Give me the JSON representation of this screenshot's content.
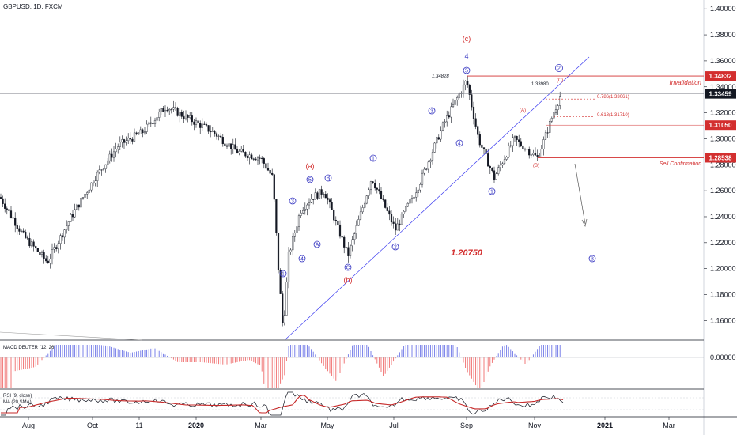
{
  "header": {
    "title": "GBPUSD, 1D, FXCM"
  },
  "chart_data": {
    "type": "candlestick",
    "symbol": "GBPUSD",
    "timeframe": "1D",
    "source": "FXCM",
    "y_axis": {
      "min": 1.145,
      "max": 1.405,
      "ticks": [
        "1.40000",
        "1.38000",
        "1.36000",
        "1.34000",
        "1.32000",
        "1.30000",
        "1.28000",
        "1.26000",
        "1.24000",
        "1.22000",
        "1.20000",
        "1.18000",
        "1.16000"
      ]
    },
    "x_axis": {
      "labels": [
        "Aug",
        "Oct",
        "11",
        "2020",
        "Mar",
        "May",
        "Jul",
        "Sep",
        "Nov",
        "2021",
        "Mar"
      ]
    },
    "price_tags": [
      {
        "value": 1.34832,
        "label": "1.34832",
        "color": "#d32f2f"
      },
      {
        "value": 1.33459,
        "label": "1.33459",
        "color": "#131722"
      },
      {
        "value": 1.3105,
        "label": "1.31050",
        "color": "#d32f2f"
      },
      {
        "value": 1.28538,
        "label": "1.28538",
        "color": "#d32f2f"
      }
    ],
    "levels": [
      {
        "name": "Invalidation",
        "value": 1.34832
      },
      {
        "name": "Sell Confirmation",
        "value": 1.28538
      },
      {
        "name": "support",
        "value": 1.2075,
        "label": "1.20750"
      }
    ],
    "annotations": {
      "high_label": "1.34828",
      "recent_high": "1.33980",
      "fib_786": "0.786(1.33061)",
      "fib_618": "0.618(1.31710)",
      "wave_c": "(c)",
      "wave_4": "4",
      "wave_a": "(a)",
      "wave_b": "(b)",
      "wave_A": "(A)",
      "wave_B": "(B)",
      "wave_C": "(C)",
      "invalidation": "Invalidation",
      "sell_confirmation": "Sell Confirmation"
    },
    "path_x": [
      0,
      30,
      60,
      90,
      120,
      150,
      180,
      210,
      240,
      270,
      300,
      330,
      345,
      352,
      358,
      365,
      380,
      395,
      410,
      440,
      470,
      500,
      530,
      560,
      590,
      605,
      625,
      650,
      680,
      700,
      710
    ],
    "path_y": [
      1.255,
      1.225,
      1.205,
      1.24,
      1.27,
      1.295,
      1.305,
      1.325,
      1.315,
      1.305,
      1.29,
      1.285,
      1.27,
      1.2,
      1.152,
      1.21,
      1.245,
      1.255,
      1.26,
      1.21,
      1.27,
      1.23,
      1.265,
      1.31,
      1.345,
      1.3,
      1.27,
      1.3,
      1.285,
      1.32,
      1.335
    ],
    "macd": {
      "name": "MACD DEUTER (12, 26)",
      "ytick": "0.00000"
    },
    "rsi": {
      "name": "RSI (9, close)",
      "ma": "MA (20,SMA)"
    }
  }
}
